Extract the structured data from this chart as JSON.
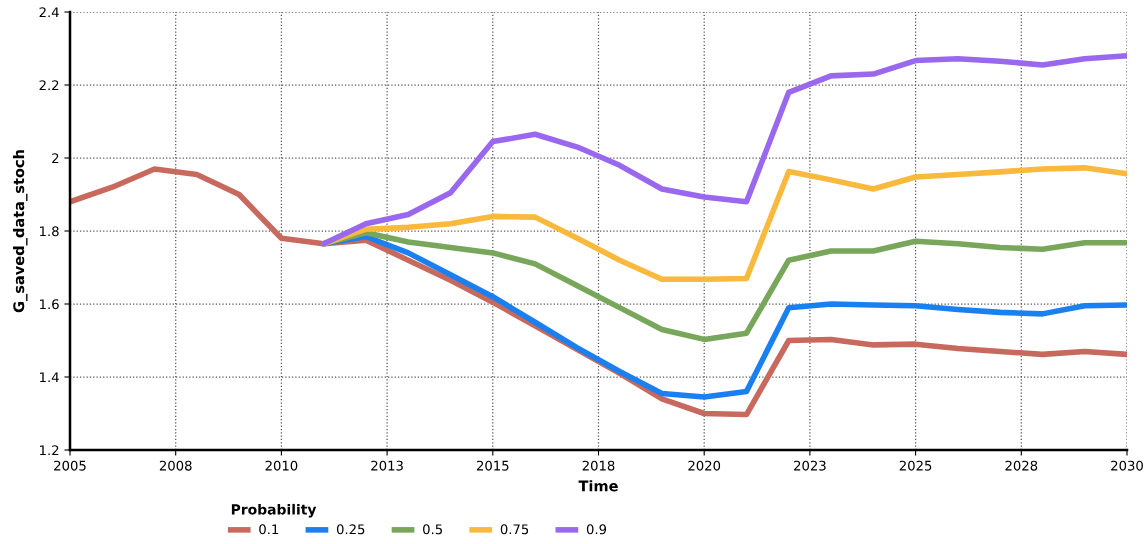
{
  "chart_data": {
    "type": "line",
    "xlabel": "Time",
    "ylabel": "G_saved_data_stoch",
    "legend_title": "Probability",
    "legend": "bottom",
    "grid": true,
    "line_style": "solid",
    "xlim": [
      2005,
      2030
    ],
    "xticks": [
      2005,
      {
        "value": 2007.5,
        "label": "2008"
      },
      2010,
      {
        "value": 2012.5,
        "label": "2013"
      },
      2015,
      {
        "value": 2017.5,
        "label": "2018"
      },
      2020,
      {
        "value": 2022.5,
        "label": "2023"
      },
      2025,
      {
        "value": 2027.5,
        "label": "2028"
      },
      2030
    ],
    "ylim": [
      1.2,
      2.4
    ],
    "yticks": [
      1.2,
      1.4,
      1.6,
      1.8,
      {
        "value": 2,
        "label": "2"
      },
      2.2,
      2.4
    ],
    "series": [
      {
        "name": "0.1",
        "color": "#c8695e",
        "x": [
          2005,
          2006,
          2007,
          2008,
          2009,
          2010,
          2011,
          2012,
          2013,
          2014,
          2015,
          2016,
          2017,
          2018,
          2019,
          2020,
          2021,
          2022,
          2023,
          2024,
          2025,
          2026,
          2027,
          2028,
          2029,
          2030
        ],
        "values": [
          1.88,
          1.92,
          1.97,
          1.955,
          1.9,
          1.78,
          1.765,
          1.775,
          1.72,
          1.665,
          1.605,
          1.54,
          1.475,
          1.41,
          1.34,
          1.3,
          1.297,
          1.5,
          1.503,
          1.488,
          1.49,
          1.478,
          1.47,
          1.462,
          1.47,
          1.462
        ]
      },
      {
        "name": "0.25",
        "color": "#1a7ff0",
        "x": [
          2011,
          2012,
          2013,
          2014,
          2015,
          2016,
          2017,
          2018,
          2019,
          2020,
          2021,
          2022,
          2023,
          2024,
          2025,
          2026,
          2027,
          2028,
          2029,
          2030
        ],
        "values": [
          1.765,
          1.785,
          1.74,
          1.68,
          1.62,
          1.55,
          1.48,
          1.415,
          1.355,
          1.345,
          1.36,
          1.59,
          1.6,
          1.597,
          1.595,
          1.585,
          1.577,
          1.573,
          1.595,
          1.597
        ]
      },
      {
        "name": "0.5",
        "color": "#78a65a",
        "x": [
          2011,
          2012,
          2013,
          2014,
          2015,
          2016,
          2017,
          2018,
          2019,
          2020,
          2021,
          2022,
          2023,
          2024,
          2025,
          2026,
          2027,
          2028,
          2029,
          2030
        ],
        "values": [
          1.765,
          1.795,
          1.77,
          1.755,
          1.74,
          1.71,
          1.65,
          1.59,
          1.53,
          1.503,
          1.52,
          1.72,
          1.745,
          1.745,
          1.772,
          1.765,
          1.755,
          1.75,
          1.768,
          1.768
        ]
      },
      {
        "name": "0.75",
        "color": "#f8b93c",
        "x": [
          2011,
          2012,
          2013,
          2014,
          2015,
          2016,
          2017,
          2018,
          2019,
          2020,
          2021,
          2022,
          2023,
          2024,
          2025,
          2026,
          2027,
          2028,
          2029,
          2030
        ],
        "values": [
          1.765,
          1.805,
          1.81,
          1.82,
          1.84,
          1.838,
          1.78,
          1.72,
          1.668,
          1.668,
          1.67,
          1.963,
          1.94,
          1.915,
          1.948,
          1.955,
          1.962,
          1.97,
          1.973,
          1.957
        ]
      },
      {
        "name": "0.9",
        "color": "#9a68ee",
        "x": [
          2011,
          2012,
          2013,
          2014,
          2015,
          2016,
          2017,
          2018,
          2019,
          2020,
          2021,
          2022,
          2023,
          2024,
          2025,
          2026,
          2027,
          2028,
          2029,
          2030
        ],
        "values": [
          1.765,
          1.82,
          1.845,
          1.905,
          2.045,
          2.065,
          2.03,
          1.98,
          1.915,
          1.893,
          1.88,
          2.18,
          2.225,
          2.23,
          2.267,
          2.272,
          2.265,
          2.255,
          2.272,
          2.28
        ]
      }
    ]
  }
}
